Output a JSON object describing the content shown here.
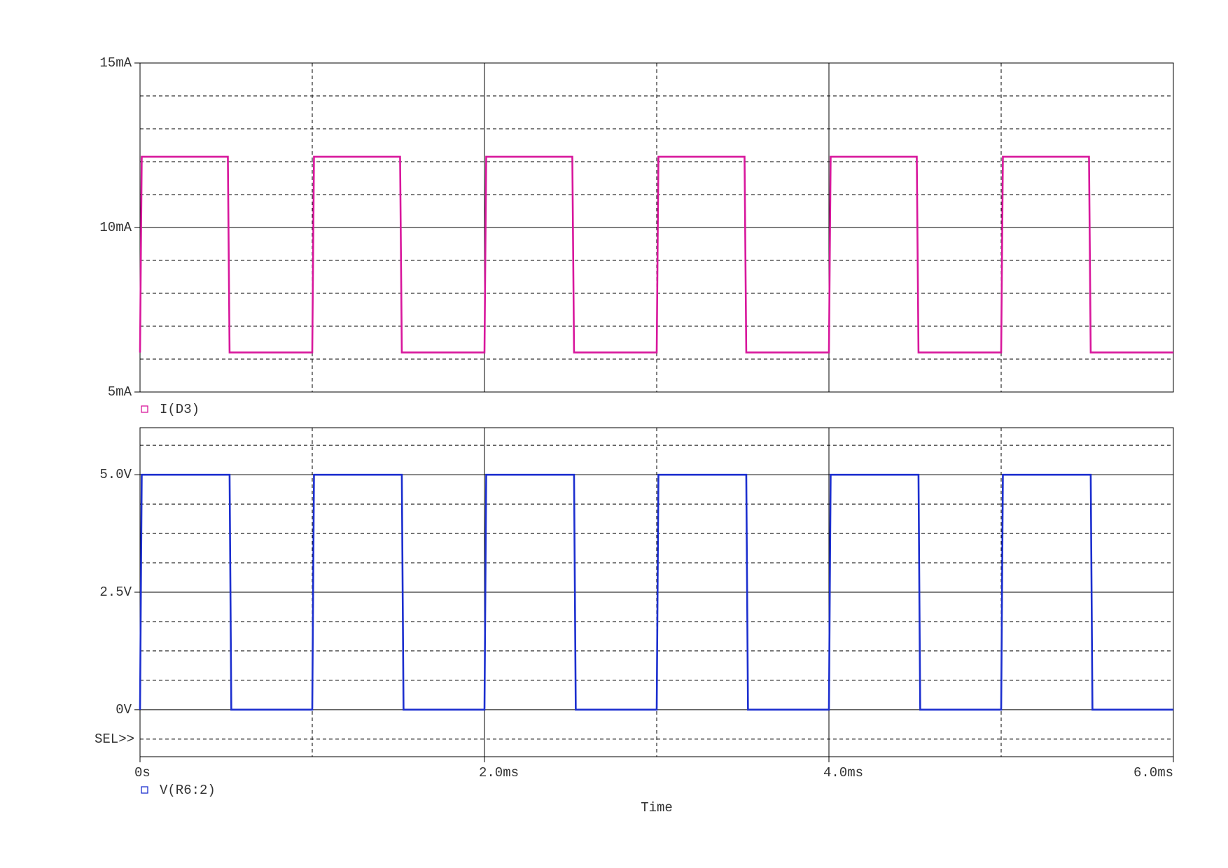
{
  "chart_data": [
    {
      "type": "line",
      "x": [
        0,
        0.01,
        0.51,
        0.52,
        1.0,
        1.01,
        1.51,
        1.52,
        2.0,
        2.01,
        2.51,
        2.52,
        3.0,
        3.01,
        3.51,
        3.52,
        4.0,
        4.01,
        4.51,
        4.52,
        5.0,
        5.01,
        5.51,
        5.52,
        6.0
      ],
      "series": [
        {
          "name": "I(D3)",
          "color": "#d8179c",
          "values": [
            6.2,
            12.15,
            12.15,
            6.2,
            6.2,
            12.15,
            12.15,
            6.2,
            6.2,
            12.15,
            12.15,
            6.2,
            6.2,
            12.15,
            12.15,
            6.2,
            6.2,
            12.15,
            12.15,
            6.2,
            6.2,
            12.15,
            12.15,
            6.2,
            6.2
          ]
        }
      ],
      "xlim": [
        0,
        6
      ],
      "x_grid": [
        2,
        4
      ],
      "x_minor_grid": [
        1,
        3,
        5
      ],
      "ylim": [
        5,
        15
      ],
      "yticks": [
        {
          "value": 5,
          "label": "5mA"
        },
        {
          "value": 10,
          "label": "10mA"
        },
        {
          "value": 15,
          "label": "15mA"
        }
      ],
      "y_minor_grid": [
        6,
        7,
        8,
        9,
        11,
        12,
        13,
        14
      ]
    },
    {
      "type": "line",
      "x": [
        0,
        0.01,
        0.52,
        0.53,
        1.0,
        1.01,
        1.52,
        1.53,
        2.0,
        2.01,
        2.52,
        2.53,
        3.0,
        3.01,
        3.52,
        3.53,
        4.0,
        4.01,
        4.52,
        4.53,
        5.0,
        5.01,
        5.52,
        5.53,
        6.0
      ],
      "series": [
        {
          "name": "V(R6:2)",
          "color": "#1c2fcf",
          "values": [
            0,
            5,
            5,
            0,
            0,
            5,
            5,
            0,
            0,
            5,
            5,
            0,
            0,
            5,
            5,
            0,
            0,
            5,
            5,
            0,
            0,
            5,
            5,
            0,
            0
          ]
        }
      ],
      "xlim": [
        0,
        6
      ],
      "xticks": [
        {
          "value": 0,
          "label": "0s"
        },
        {
          "value": 2,
          "label": "2.0ms"
        },
        {
          "value": 4,
          "label": "4.0ms"
        },
        {
          "value": 6,
          "label": "6.0ms"
        }
      ],
      "x_minor_grid": [
        1,
        3,
        5
      ],
      "x_label": "Time",
      "ylim": [
        -1,
        6
      ],
      "yticks": [
        {
          "value": 0,
          "label": "0V"
        },
        {
          "value": 2.5,
          "label": "2.5V"
        },
        {
          "value": 5,
          "label": "5.0V"
        }
      ],
      "y_minor_grid": [
        -0.625,
        0.625,
        1.25,
        1.875,
        3.125,
        3.75,
        4.375,
        5.625
      ],
      "annotation": "SEL>>"
    }
  ]
}
